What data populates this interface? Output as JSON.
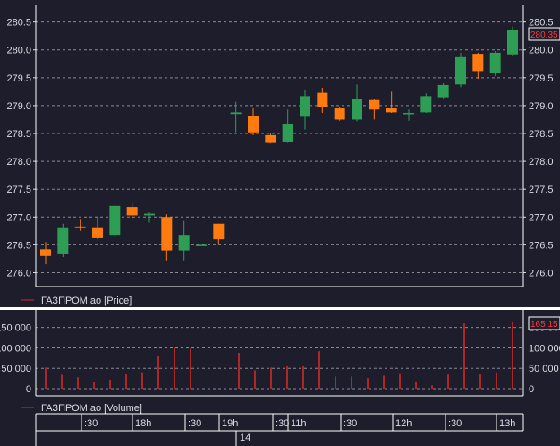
{
  "colors": {
    "background": "#1d1d2b",
    "panel_border": "#ffffff",
    "grid": "#8a8a96",
    "text": "#dcdce4",
    "up_candle": "#2e9e55",
    "down_candle": "#ff7b10",
    "volume_bar": "#e02828",
    "price_line": "#e02828",
    "last_price_box": "#1d1d2b",
    "last_price_text": "#ff3b3b"
  },
  "price_panel": {
    "legend": "ГАЗПРОМ ао [Price]",
    "last_value_label": "280.35"
  },
  "volume_panel": {
    "legend": "ГАЗПРОМ ао [Volume]",
    "last_value_label": "165 15"
  },
  "time_axis": {
    "labels": [
      ":30",
      "18h",
      ":30",
      "19h",
      ":30",
      "11h",
      ":30",
      "12h",
      ":30",
      "13h"
    ],
    "date_label": "14"
  },
  "chart_data": [
    {
      "type": "candlestick",
      "title": "ГАЗПРОМ ао [Price]",
      "y_ticks_left": [
        "276.0",
        "276.5",
        "277.0",
        "277.5",
        "278.0",
        "278.5",
        "279.0",
        "279.5",
        "280.0",
        "280.5"
      ],
      "y_ticks_right": [
        "276.0",
        "276.5",
        "277.0",
        "277.5",
        "278.0",
        "278.5",
        "279.0",
        "279.5",
        "280.0",
        "280.5"
      ],
      "ylim": [
        275.75,
        280.8
      ],
      "grid": true,
      "candles": [
        {
          "open": 276.42,
          "high": 276.55,
          "low": 276.15,
          "close": 276.3
        },
        {
          "open": 276.33,
          "high": 276.88,
          "low": 276.28,
          "close": 276.8
        },
        {
          "open": 276.83,
          "high": 276.95,
          "low": 276.75,
          "close": 276.8
        },
        {
          "open": 276.8,
          "high": 277.0,
          "low": 276.6,
          "close": 276.62
        },
        {
          "open": 276.68,
          "high": 277.22,
          "low": 276.63,
          "close": 277.2
        },
        {
          "open": 277.18,
          "high": 277.25,
          "low": 276.97,
          "close": 277.03
        },
        {
          "open": 277.03,
          "high": 277.08,
          "low": 276.9,
          "close": 277.06
        },
        {
          "open": 277.0,
          "high": 277.05,
          "low": 276.22,
          "close": 276.4
        },
        {
          "open": 276.4,
          "high": 276.93,
          "low": 276.22,
          "close": 276.68
        },
        {
          "open": 276.5,
          "high": 276.5,
          "low": 276.5,
          "close": 276.5
        },
        {
          "open": 276.88,
          "high": 276.88,
          "low": 276.52,
          "close": 276.6
        },
        {
          "open": 278.85,
          "high": 279.07,
          "low": 278.52,
          "close": 278.88
        },
        {
          "open": 278.82,
          "high": 278.95,
          "low": 278.47,
          "close": 278.52
        },
        {
          "open": 278.47,
          "high": 278.5,
          "low": 278.32,
          "close": 278.33
        },
        {
          "open": 278.35,
          "high": 278.93,
          "low": 278.33,
          "close": 278.67
        },
        {
          "open": 278.8,
          "high": 279.28,
          "low": 278.57,
          "close": 279.17
        },
        {
          "open": 279.23,
          "high": 279.32,
          "low": 278.87,
          "close": 278.97
        },
        {
          "open": 278.95,
          "high": 278.97,
          "low": 278.73,
          "close": 278.75
        },
        {
          "open": 278.75,
          "high": 279.38,
          "low": 278.72,
          "close": 279.12
        },
        {
          "open": 279.1,
          "high": 279.12,
          "low": 278.75,
          "close": 278.93
        },
        {
          "open": 278.95,
          "high": 279.25,
          "low": 278.87,
          "close": 278.88
        },
        {
          "open": 278.87,
          "high": 278.93,
          "low": 278.73,
          "close": 278.87
        },
        {
          "open": 278.88,
          "high": 279.22,
          "low": 278.87,
          "close": 279.17
        },
        {
          "open": 279.15,
          "high": 279.4,
          "low": 279.13,
          "close": 279.37
        },
        {
          "open": 279.38,
          "high": 279.95,
          "low": 279.33,
          "close": 279.87
        },
        {
          "open": 279.93,
          "high": 279.95,
          "low": 279.48,
          "close": 279.62
        },
        {
          "open": 279.58,
          "high": 279.98,
          "low": 279.53,
          "close": 279.95
        },
        {
          "open": 279.92,
          "high": 280.42,
          "low": 279.9,
          "close": 280.35
        }
      ]
    },
    {
      "type": "bar",
      "title": "ГАЗПРОМ ао [Volume]",
      "y_ticks_left": [
        "0",
        "50 000",
        "100 000",
        "150 000"
      ],
      "y_ticks_right": [
        "0",
        "50 000",
        "100 000",
        "150 000"
      ],
      "ylim": [
        0,
        180000
      ],
      "grid": true,
      "values": [
        52000,
        34000,
        28000,
        16000,
        22000,
        35000,
        40000,
        80000,
        100000,
        98000,
        0,
        0,
        88000,
        45000,
        52000,
        55000,
        55000,
        92000,
        30000,
        30000,
        26000,
        32000,
        36000,
        18000,
        8000,
        35000,
        160000,
        35000,
        40000,
        165150
      ]
    }
  ]
}
